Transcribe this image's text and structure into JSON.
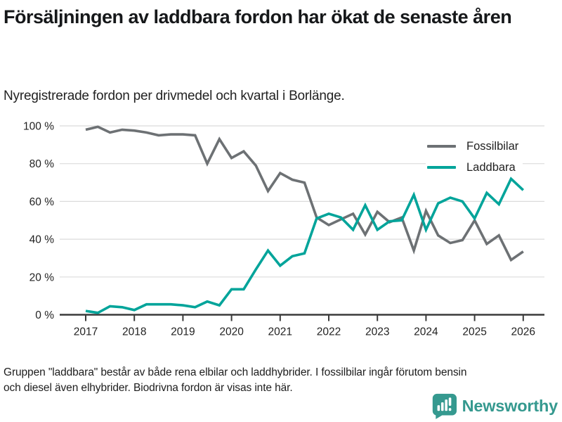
{
  "header": {
    "title": "Försäljningen av laddbara fordon har ökat de senaste åren",
    "subtitle": "Nyregistrerade fordon per drivmedel och kvartal i Borlänge."
  },
  "chart_data": {
    "type": "line",
    "frequency": "quarterly",
    "x_start": "2017 Q1",
    "x_end": "2026 Q1",
    "x_tick_labels": [
      "2017",
      "2018",
      "2019",
      "2020",
      "2021",
      "2022",
      "2023",
      "2024",
      "2025",
      "2026"
    ],
    "y_tick_labels": [
      "0 %",
      "20 %",
      "40 %",
      "60 %",
      "80 %",
      "100 %"
    ],
    "ylim": [
      0,
      100
    ],
    "grid": "horizontal",
    "legend_position": "top-right",
    "series": [
      {
        "name": "Fossilbilar",
        "color": "#6d7174",
        "values": [
          98,
          99.5,
          96.5,
          98,
          97.5,
          96.5,
          95,
          95.5,
          95.5,
          95,
          80,
          93,
          83,
          86.5,
          79,
          65.5,
          75,
          71.5,
          70,
          51.5,
          47.5,
          50.5,
          53.5,
          42.5,
          54.5,
          49,
          51.5,
          34,
          55,
          42,
          38,
          39.5,
          50,
          37.5,
          42,
          29,
          33.5
        ]
      },
      {
        "name": "Laddbara",
        "color": "#00a49a",
        "values": [
          2,
          1,
          4.5,
          4,
          2.5,
          5.5,
          5.5,
          5.5,
          5,
          4,
          7,
          5,
          13.5,
          13.5,
          24,
          34,
          26,
          31,
          32.5,
          51,
          53.5,
          51.5,
          45,
          58,
          45,
          49.5,
          50,
          63.5,
          45,
          59,
          62,
          60,
          51,
          64.5,
          58.5,
          72,
          66
        ]
      }
    ]
  },
  "footnote": {
    "line1": "Gruppen \"laddbara\" består av både rena elbilar och laddhybrider. I fossilbilar ingår förutom bensin",
    "line2": "och diesel även elhybrider. Biodrivna fordon är visas inte här."
  },
  "logo": {
    "text": "Newsworthy",
    "color": "#35998f"
  }
}
